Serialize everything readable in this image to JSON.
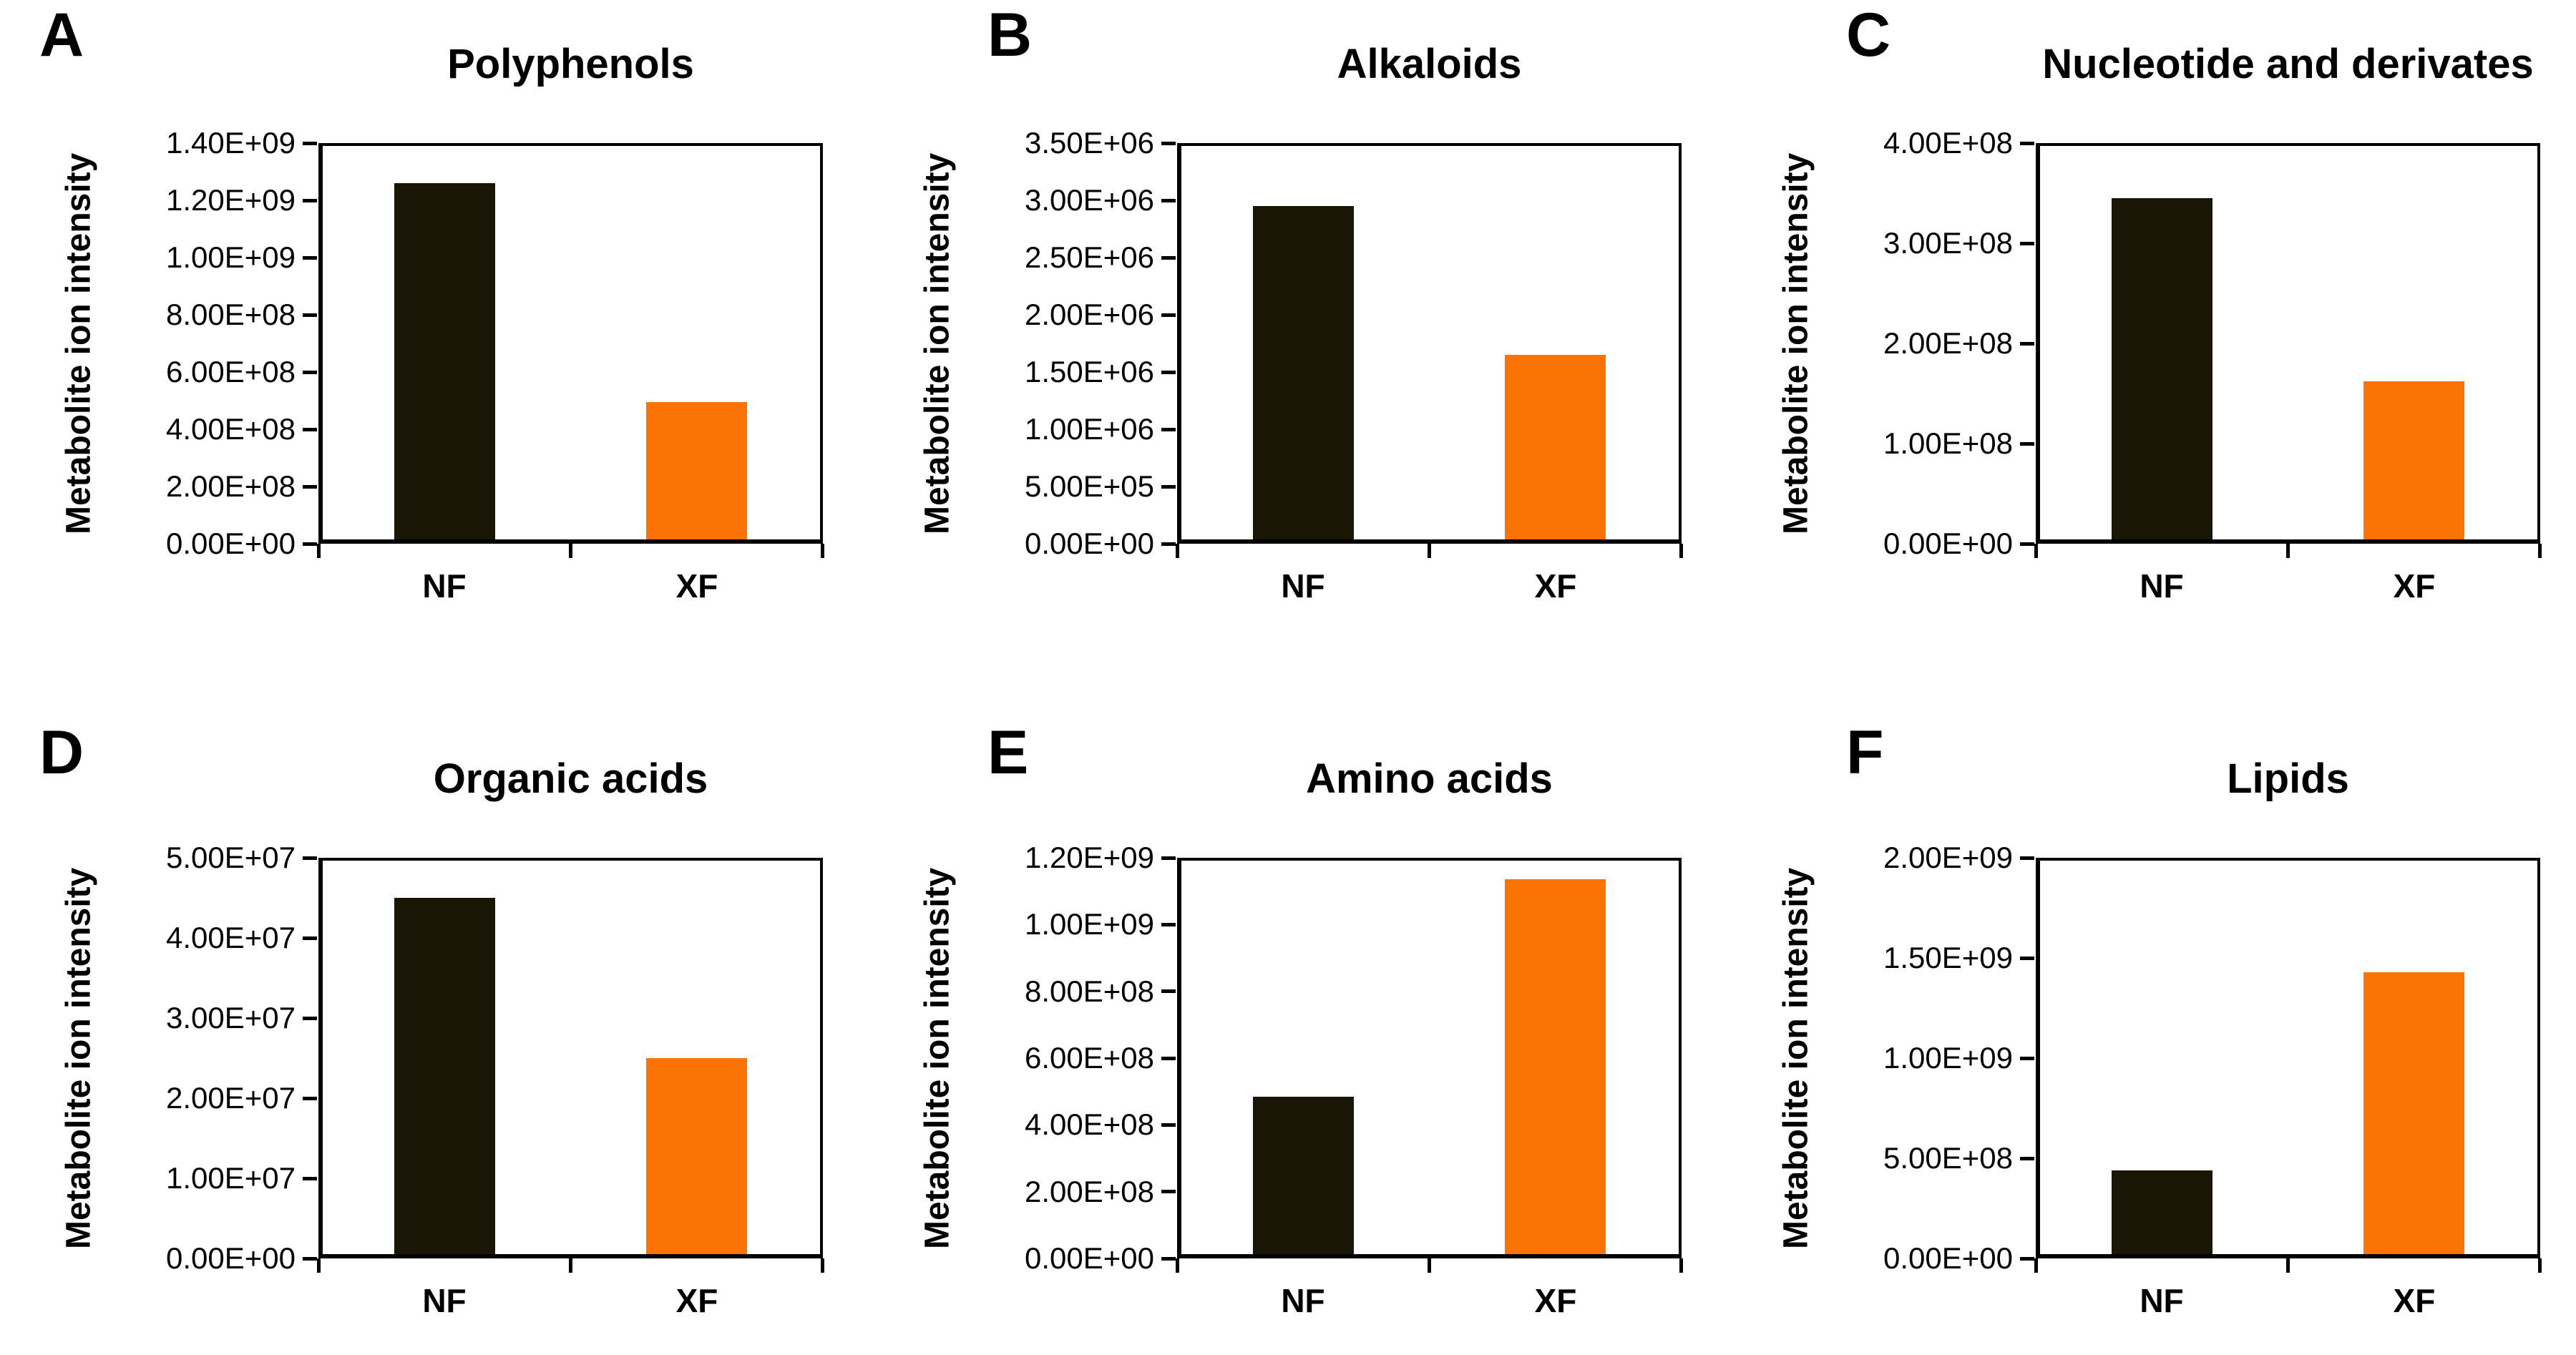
{
  "figure": {
    "background": "#ffffff",
    "text_color": "#000000",
    "axis_color": "#000000",
    "y_axis_label": "Metabolite ion intensity",
    "categories": [
      "NF",
      "XF"
    ],
    "bar_colors": {
      "NF": "#1a1606",
      "XF": "#fb7305"
    }
  },
  "chart_data": [
    {
      "type": "bar",
      "panel_letter": "A",
      "title": "Polyphenols",
      "xlabel": "",
      "ylabel": "Metabolite ion intensity",
      "categories": [
        "NF",
        "XF"
      ],
      "values": [
        1260000000,
        495000000
      ],
      "ylim": [
        0,
        1400000000
      ],
      "ytick_step": 200000000,
      "ytick_labels": [
        "0.00E+00",
        "2.00E+08",
        "4.00E+08",
        "6.00E+08",
        "8.00E+08",
        "1.00E+09",
        "1.20E+09",
        "1.40E+09"
      ],
      "grid": false,
      "legend": false
    },
    {
      "type": "bar",
      "panel_letter": "B",
      "title": "Alkaloids",
      "xlabel": "",
      "ylabel": "Metabolite ion intensity",
      "categories": [
        "NF",
        "XF"
      ],
      "values": [
        2950000,
        1650000
      ],
      "ylim": [
        0,
        3500000
      ],
      "ytick_step": 500000,
      "ytick_labels": [
        "0.00E+00",
        "5.00E+05",
        "1.00E+06",
        "1.50E+06",
        "2.00E+06",
        "2.50E+06",
        "3.00E+06",
        "3.50E+06"
      ],
      "grid": false,
      "legend": false
    },
    {
      "type": "bar",
      "panel_letter": "C",
      "title": "Nucleotide and derivates",
      "xlabel": "",
      "ylabel": "Metabolite ion intensity",
      "categories": [
        "NF",
        "XF"
      ],
      "values": [
        345000000,
        162000000
      ],
      "ylim": [
        0,
        400000000
      ],
      "ytick_step": 100000000,
      "ytick_labels": [
        "0.00E+00",
        "1.00E+08",
        "2.00E+08",
        "3.00E+08",
        "4.00E+08"
      ],
      "grid": false,
      "legend": false
    },
    {
      "type": "bar",
      "panel_letter": "D",
      "title": "Organic acids",
      "xlabel": "",
      "ylabel": "Metabolite ion intensity",
      "categories": [
        "NF",
        "XF"
      ],
      "values": [
        45000000,
        25000000
      ],
      "ylim": [
        0,
        50000000
      ],
      "ytick_step": 10000000,
      "ytick_labels": [
        "0.00E+00",
        "1.00E+07",
        "2.00E+07",
        "3.00E+07",
        "4.00E+07",
        "5.00E+07"
      ],
      "grid": false,
      "legend": false
    },
    {
      "type": "bar",
      "panel_letter": "E",
      "title": "Amino acids",
      "xlabel": "",
      "ylabel": "Metabolite ion intensity",
      "categories": [
        "NF",
        "XF"
      ],
      "values": [
        485000000,
        1135000000
      ],
      "ylim": [
        0,
        1200000000
      ],
      "ytick_step": 200000000,
      "ytick_labels": [
        "0.00E+00",
        "2.00E+08",
        "4.00E+08",
        "6.00E+08",
        "8.00E+08",
        "1.00E+09",
        "1.20E+09"
      ],
      "grid": false,
      "legend": false
    },
    {
      "type": "bar",
      "panel_letter": "F",
      "title": "Lipids",
      "xlabel": "",
      "ylabel": "Metabolite ion intensity",
      "categories": [
        "NF",
        "XF"
      ],
      "values": [
        440000000,
        1430000000
      ],
      "ylim": [
        0,
        2000000000
      ],
      "ytick_step": 500000000,
      "ytick_labels": [
        "0.00E+00",
        "5.00E+08",
        "1.00E+09",
        "1.50E+09",
        "2.00E+09"
      ],
      "grid": false,
      "legend": false
    }
  ]
}
